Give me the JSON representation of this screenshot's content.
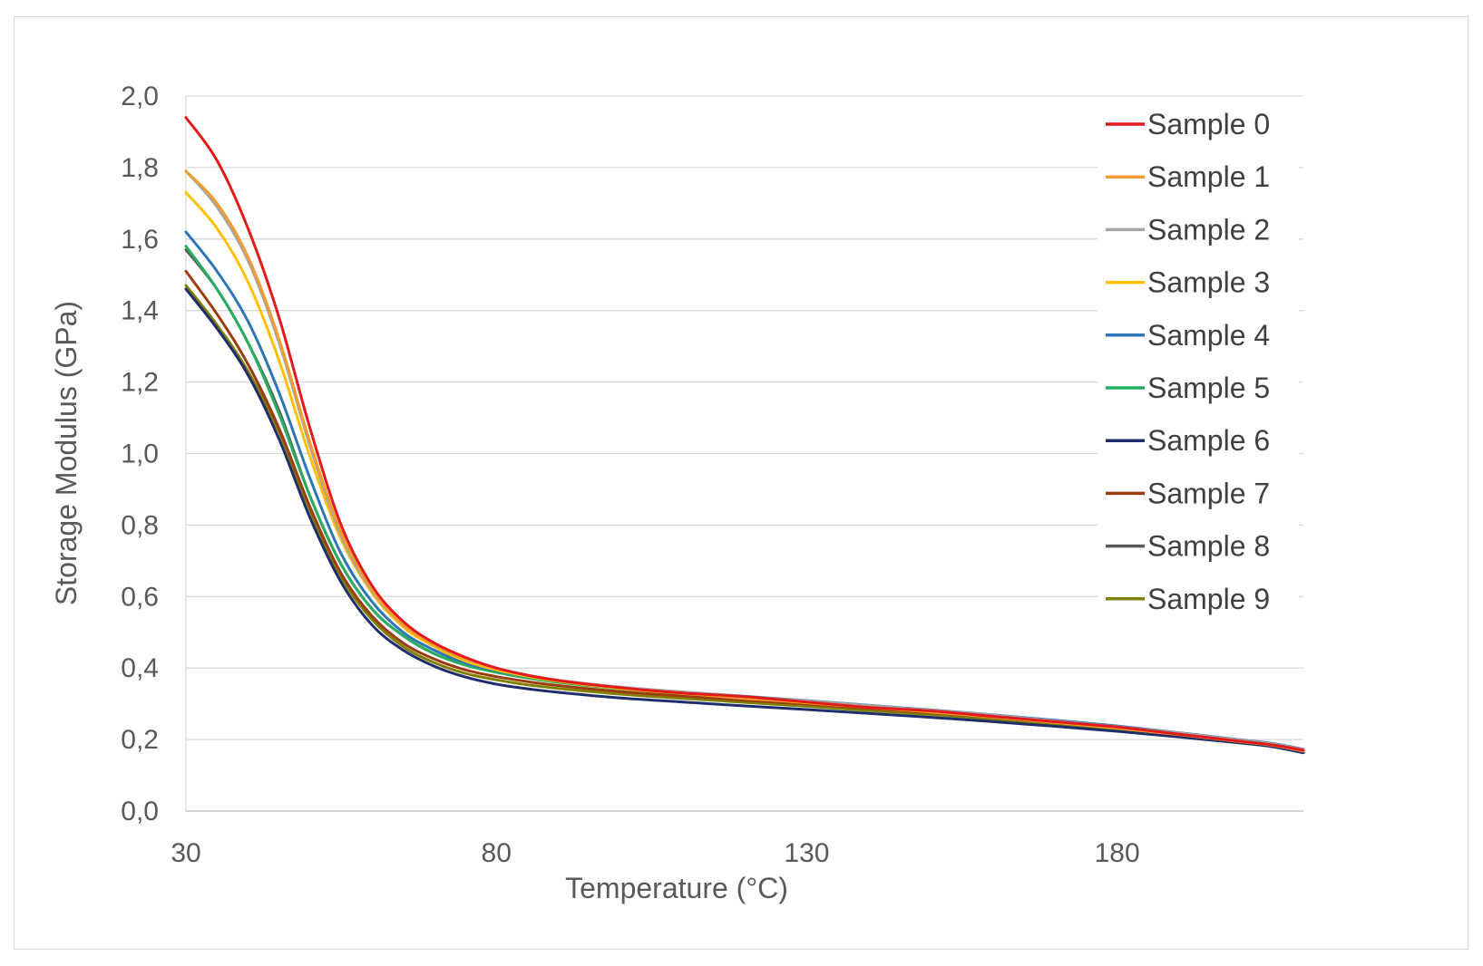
{
  "chart_data": {
    "type": "line",
    "title": "",
    "xlabel": "Temperature (°C)",
    "ylabel": "Storage Modulus (GPa)",
    "xlim": [
      30,
      210
    ],
    "ylim": [
      0,
      2.0
    ],
    "xticks": [
      30,
      80,
      130,
      180
    ],
    "xtick_labels": [
      "30",
      "80",
      "130",
      "180"
    ],
    "yticks": [
      0,
      0.2,
      0.4,
      0.6,
      0.8,
      1.0,
      1.2,
      1.4,
      1.6,
      1.8,
      2.0
    ],
    "ytick_labels": [
      "0,0",
      "0,2",
      "0,4",
      "0,6",
      "0,8",
      "1,0",
      "1,2",
      "1,4",
      "1,6",
      "1,8",
      "2,0"
    ],
    "grid": "horizontal",
    "legend": "top-right",
    "x": [
      30,
      35,
      40,
      45,
      50,
      55,
      60,
      65,
      70,
      75,
      80,
      85,
      90,
      100,
      110,
      120,
      130,
      140,
      150,
      160,
      170,
      180,
      190,
      200,
      205,
      210
    ],
    "series": [
      {
        "name": "Sample 0",
        "color": "#e31a1c",
        "values": [
          1.94,
          1.82,
          1.63,
          1.38,
          1.07,
          0.8,
          0.63,
          0.53,
          0.47,
          0.43,
          0.4,
          0.38,
          0.365,
          0.345,
          0.33,
          0.32,
          0.305,
          0.29,
          0.28,
          0.265,
          0.25,
          0.235,
          0.215,
          0.195,
          0.185,
          0.17
        ]
      },
      {
        "name": "Sample 1",
        "color": "#f39c30",
        "values": [
          1.79,
          1.7,
          1.55,
          1.32,
          1.03,
          0.78,
          0.62,
          0.52,
          0.465,
          0.425,
          0.4,
          0.38,
          0.365,
          0.345,
          0.33,
          0.315,
          0.305,
          0.29,
          0.278,
          0.263,
          0.248,
          0.232,
          0.214,
          0.194,
          0.184,
          0.168
        ]
      },
      {
        "name": "Sample 2",
        "color": "#a5a5a5",
        "values": [
          1.79,
          1.69,
          1.54,
          1.31,
          1.02,
          0.77,
          0.615,
          0.52,
          0.465,
          0.425,
          0.4,
          0.38,
          0.366,
          0.347,
          0.333,
          0.32,
          0.308,
          0.295,
          0.282,
          0.268,
          0.252,
          0.236,
          0.218,
          0.198,
          0.188,
          0.172
        ]
      },
      {
        "name": "Sample 3",
        "color": "#ffc000",
        "values": [
          1.73,
          1.63,
          1.48,
          1.26,
          0.99,
          0.76,
          0.61,
          0.515,
          0.46,
          0.42,
          0.395,
          0.377,
          0.363,
          0.343,
          0.329,
          0.316,
          0.303,
          0.29,
          0.277,
          0.263,
          0.248,
          0.232,
          0.214,
          0.194,
          0.184,
          0.168
        ]
      },
      {
        "name": "Sample 4",
        "color": "#2e75b6",
        "values": [
          1.62,
          1.51,
          1.37,
          1.17,
          0.93,
          0.72,
          0.585,
          0.5,
          0.45,
          0.415,
          0.393,
          0.377,
          0.364,
          0.346,
          0.333,
          0.321,
          0.309,
          0.296,
          0.283,
          0.269,
          0.254,
          0.238,
          0.219,
          0.199,
          0.189,
          0.173
        ]
      },
      {
        "name": "Sample 5",
        "color": "#27ae60",
        "values": [
          1.58,
          1.46,
          1.31,
          1.11,
          0.88,
          0.69,
          0.565,
          0.49,
          0.44,
          0.408,
          0.388,
          0.372,
          0.36,
          0.342,
          0.329,
          0.317,
          0.305,
          0.292,
          0.279,
          0.265,
          0.25,
          0.234,
          0.216,
          0.196,
          0.186,
          0.17
        ]
      },
      {
        "name": "Sample 6",
        "color": "#1f2d6b",
        "values": [
          1.46,
          1.35,
          1.22,
          1.04,
          0.82,
          0.64,
          0.52,
          0.45,
          0.405,
          0.375,
          0.355,
          0.342,
          0.332,
          0.316,
          0.305,
          0.294,
          0.284,
          0.273,
          0.262,
          0.25,
          0.237,
          0.223,
          0.207,
          0.19,
          0.18,
          0.163
        ]
      },
      {
        "name": "Sample 7",
        "color": "#9c3d10",
        "values": [
          1.51,
          1.39,
          1.25,
          1.07,
          0.85,
          0.665,
          0.545,
          0.47,
          0.425,
          0.395,
          0.376,
          0.362,
          0.351,
          0.334,
          0.322,
          0.31,
          0.299,
          0.287,
          0.275,
          0.262,
          0.248,
          0.232,
          0.214,
          0.194,
          0.184,
          0.167
        ]
      },
      {
        "name": "Sample 8",
        "color": "#5a5a5a",
        "values": [
          1.57,
          1.46,
          1.31,
          1.12,
          0.88,
          0.69,
          0.565,
          0.49,
          0.44,
          0.41,
          0.389,
          0.374,
          0.362,
          0.345,
          0.332,
          0.32,
          0.308,
          0.295,
          0.282,
          0.268,
          0.253,
          0.237,
          0.218,
          0.198,
          0.188,
          0.171
        ]
      },
      {
        "name": "Sample 9",
        "color": "#808000",
        "values": [
          1.47,
          1.36,
          1.23,
          1.06,
          0.84,
          0.655,
          0.535,
          0.46,
          0.415,
          0.385,
          0.367,
          0.353,
          0.343,
          0.327,
          0.315,
          0.304,
          0.293,
          0.281,
          0.27,
          0.257,
          0.243,
          0.228,
          0.21,
          0.191,
          0.181,
          0.165
        ]
      }
    ]
  }
}
